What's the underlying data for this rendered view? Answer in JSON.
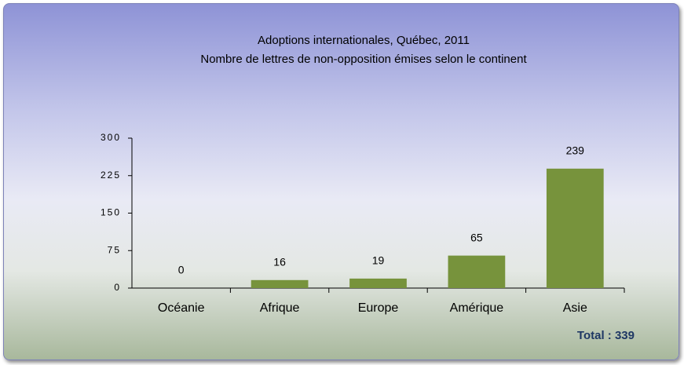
{
  "chart_data": {
    "type": "bar",
    "title": "Adoptions internationales, Québec, 2011",
    "subtitle": "Nombre de lettres de non-opposition émises selon le continent",
    "annotation": "Total : 339",
    "categories": [
      "Océanie",
      "Afrique",
      "Europe",
      "Amérique",
      "Asie"
    ],
    "values": [
      0,
      16,
      19,
      65,
      239
    ],
    "color": "#77933c",
    "ylim": [
      0,
      300
    ],
    "yticks": [
      0,
      75,
      150,
      225,
      300
    ],
    "grid": false
  }
}
